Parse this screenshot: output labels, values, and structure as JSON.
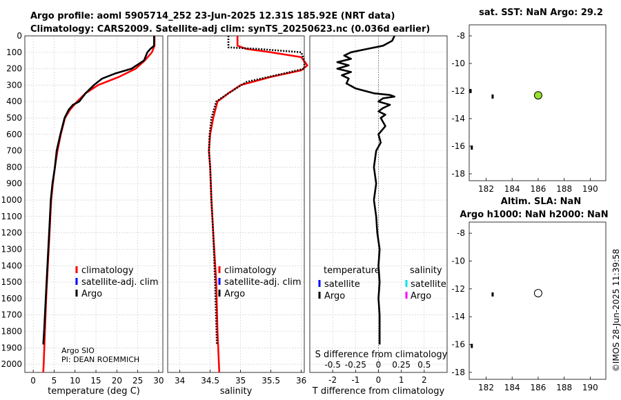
{
  "title": {
    "line1": "Argo profile: aoml 5905714_252 23-Jun-2025 12.31S 185.92E (NRT data)",
    "line2": "Climatology: CARS2009. Satellite-adj clim: synTS_20250623.nc (0.036d earlier)"
  },
  "credit": {
    "line1": "Argo SIO",
    "line2": "PI: DEAN ROEMMICH"
  },
  "watermark": "©IMOS 28-Jun-2025 11:39:58",
  "colors": {
    "climatology": "#ff0000",
    "satellite": "#0000ff",
    "argo": "#000000",
    "s_satellite": "#00e5e5",
    "s_argo": "#ff00ff",
    "sst_marker": "#99e12e"
  },
  "chart_data": [
    {
      "type": "line",
      "name": "temperature-profile",
      "xlabel": "temperature (deg C)",
      "ylabel": "",
      "xlim": [
        -2,
        31
      ],
      "ylim": [
        2050,
        0
      ],
      "y_reversed": true,
      "grid": true,
      "xticks": [
        0,
        5,
        10,
        15,
        20,
        25,
        30
      ],
      "yticks": [
        0,
        100,
        200,
        300,
        400,
        500,
        600,
        700,
        800,
        900,
        1000,
        1100,
        1200,
        1300,
        1400,
        1500,
        1600,
        1700,
        1800,
        1900,
        2000
      ],
      "legend": {
        "placement": "lower-center",
        "entries": [
          "climatology",
          "satellite-adj. clim",
          "Argo"
        ]
      },
      "series": [
        {
          "name": "climatology",
          "color": "#ff0000",
          "style": "solid",
          "points": [
            [
              29,
              0
            ],
            [
              29,
              60
            ],
            [
              28.4,
              100
            ],
            [
              26.7,
              150
            ],
            [
              24.5,
              200
            ],
            [
              20.5,
              250
            ],
            [
              15.5,
              300
            ],
            [
              12.5,
              350
            ],
            [
              10.5,
              400
            ],
            [
              8.8,
              450
            ],
            [
              7.6,
              500
            ],
            [
              6.6,
              600
            ],
            [
              5.8,
              700
            ],
            [
              5.2,
              800
            ],
            [
              4.7,
              900
            ],
            [
              4.3,
              1000
            ],
            [
              3.9,
              1200
            ],
            [
              3.5,
              1400
            ],
            [
              3.1,
              1600
            ],
            [
              2.8,
              1800
            ],
            [
              2.5,
              2000
            ],
            [
              2.4,
              2050
            ]
          ]
        },
        {
          "name": "Argo",
          "color": "#000000",
          "style": "solid",
          "points": [
            [
              28.9,
              0
            ],
            [
              28.9,
              60
            ],
            [
              28,
              80
            ],
            [
              27.3,
              100
            ],
            [
              26.5,
              150
            ],
            [
              23.5,
              200
            ],
            [
              19.5,
              230
            ],
            [
              16.5,
              260
            ],
            [
              14.5,
              300
            ],
            [
              12.5,
              350
            ],
            [
              11,
              400
            ],
            [
              9.5,
              420
            ],
            [
              8.5,
              450
            ],
            [
              7.5,
              500
            ],
            [
              6.5,
              600
            ],
            [
              5.6,
              700
            ],
            [
              5.2,
              800
            ],
            [
              4.6,
              900
            ],
            [
              4.2,
              1000
            ],
            [
              3.8,
              1200
            ],
            [
              3.4,
              1400
            ],
            [
              3.0,
              1600
            ],
            [
              2.6,
              1800
            ],
            [
              2.4,
              1880
            ]
          ]
        }
      ]
    },
    {
      "type": "line",
      "name": "salinity-profile",
      "xlabel": "salinity",
      "xlim": [
        33.8,
        36.05
      ],
      "ylim": [
        2050,
        0
      ],
      "y_reversed": true,
      "grid": true,
      "xticks": [
        34,
        34.5,
        35,
        35.5,
        36
      ],
      "xticklabels": [
        "34",
        "34.5",
        "35",
        "35.5",
        "36"
      ],
      "legend": {
        "placement": "lower-center",
        "entries": [
          "climatology",
          "satellite-adj. clim",
          "Argo"
        ]
      },
      "series": [
        {
          "name": "climatology",
          "color": "#ff0000",
          "style": "solid",
          "points": [
            [
              34.95,
              0
            ],
            [
              34.95,
              60
            ],
            [
              35.1,
              80
            ],
            [
              35.5,
              100
            ],
            [
              36.0,
              130
            ],
            [
              36.1,
              180
            ],
            [
              36.0,
              210
            ],
            [
              35.5,
              250
            ],
            [
              35.0,
              300
            ],
            [
              34.8,
              350
            ],
            [
              34.62,
              400
            ],
            [
              34.55,
              500
            ],
            [
              34.5,
              600
            ],
            [
              34.48,
              700
            ],
            [
              34.5,
              800
            ],
            [
              34.52,
              1000
            ],
            [
              34.55,
              1200
            ],
            [
              34.6,
              1500
            ],
            [
              34.62,
              1800
            ],
            [
              34.65,
              2050
            ]
          ]
        },
        {
          "name": "Argo",
          "color": "#000000",
          "style": "dotted",
          "points": [
            [
              34.8,
              0
            ],
            [
              34.8,
              70
            ],
            [
              35.3,
              80
            ],
            [
              36.0,
              100
            ],
            [
              36.05,
              150
            ],
            [
              36.05,
              200
            ],
            [
              35.7,
              230
            ],
            [
              35.1,
              280
            ],
            [
              34.8,
              350
            ],
            [
              34.6,
              400
            ],
            [
              34.52,
              500
            ],
            [
              34.49,
              600
            ],
            [
              34.48,
              700
            ],
            [
              34.5,
              800
            ],
            [
              34.52,
              1000
            ],
            [
              34.55,
              1200
            ],
            [
              34.58,
              1500
            ],
            [
              34.61,
              1880
            ]
          ]
        }
      ]
    },
    {
      "type": "line",
      "name": "difference-profile",
      "xlabel": "T difference from climatology",
      "xlabel2": "S difference from climatology",
      "xlim": [
        -3,
        3
      ],
      "ylim": [
        2050,
        0
      ],
      "y_reversed": true,
      "grid": true,
      "xticks": [
        -2,
        -1,
        0,
        1,
        2
      ],
      "xticklabels": [
        "-2",
        "-1",
        "0",
        "1",
        "2"
      ],
      "xticks2": [
        -0.5,
        -0.25,
        0,
        0.25,
        0.5
      ],
      "xticklabels2": [
        "-0.5",
        "-0.25",
        "0",
        "0.25",
        "0.5"
      ],
      "legend": {
        "placement": "lower-center",
        "group1": "temperature",
        "group2": "salinity",
        "entries1": [
          "satellite",
          "Argo"
        ],
        "entries2": [
          "satellite",
          "Argo"
        ]
      },
      "series": [
        {
          "name": "Argo",
          "color": "#000000",
          "style": "solid",
          "points": [
            [
              0.7,
              0
            ],
            [
              0.6,
              30
            ],
            [
              0.2,
              60
            ],
            [
              -0.5,
              80
            ],
            [
              -1.2,
              100
            ],
            [
              -1.5,
              120
            ],
            [
              -1.2,
              140
            ],
            [
              -1.8,
              160
            ],
            [
              -1.3,
              180
            ],
            [
              -1.8,
              200
            ],
            [
              -1.2,
              220
            ],
            [
              -1.6,
              240
            ],
            [
              -1.3,
              260
            ],
            [
              -1.4,
              290
            ],
            [
              -1.0,
              320
            ],
            [
              -0.2,
              350
            ],
            [
              0.5,
              360
            ],
            [
              0.7,
              370
            ],
            [
              0.2,
              380
            ],
            [
              0.0,
              400
            ],
            [
              0.5,
              420
            ],
            [
              0.2,
              440
            ],
            [
              0.0,
              460
            ],
            [
              0.3,
              480
            ],
            [
              0.1,
              500
            ],
            [
              0.3,
              550
            ],
            [
              0.0,
              600
            ],
            [
              0.1,
              650
            ],
            [
              -0.1,
              700
            ],
            [
              -0.2,
              800
            ],
            [
              -0.1,
              900
            ],
            [
              -0.2,
              1000
            ],
            [
              -0.1,
              1100
            ],
            [
              -0.05,
              1200
            ],
            [
              0.05,
              1300
            ],
            [
              0.0,
              1400
            ],
            [
              0.05,
              1500
            ],
            [
              0.0,
              1600
            ],
            [
              0.05,
              1700
            ],
            [
              0.05,
              1880
            ]
          ]
        }
      ]
    },
    {
      "type": "scatter",
      "name": "sst-map",
      "title": "sat. SST: NaN Argo: 29.2",
      "xlim": [
        180.7,
        191.2
      ],
      "ylim": [
        -18.5,
        -7.2
      ],
      "xticks": [
        182,
        184,
        186,
        188,
        190
      ],
      "yticks": [
        -8,
        -10,
        -12,
        -14,
        -16,
        -18
      ],
      "points": [
        {
          "x": 186.0,
          "y": -12.31,
          "label": "Argo",
          "filled": true
        },
        {
          "x": 182.5,
          "y": -12.4,
          "label": "track",
          "filled": false
        },
        {
          "x": 180.9,
          "y": -16.1,
          "label": "track",
          "filled": false
        },
        {
          "x": 180.8,
          "y": -12.0,
          "label": "track",
          "filled": false
        }
      ]
    },
    {
      "type": "scatter",
      "name": "sla-map",
      "title": "Altim. SLA: NaN",
      "subtitle": "Argo h1000: NaN h2000: NaN",
      "xlim": [
        180.7,
        191.2
      ],
      "ylim": [
        -18.5,
        -7.2
      ],
      "xticks": [
        182,
        184,
        186,
        188,
        190
      ],
      "yticks": [
        -8,
        -10,
        -12,
        -14,
        -16,
        -18
      ],
      "points": [
        {
          "x": 186.0,
          "y": -12.31,
          "label": "Argo",
          "filled": false
        },
        {
          "x": 182.5,
          "y": -12.4,
          "label": "track",
          "filled": false
        },
        {
          "x": 180.9,
          "y": -16.1,
          "label": "track",
          "filled": false
        }
      ]
    }
  ]
}
